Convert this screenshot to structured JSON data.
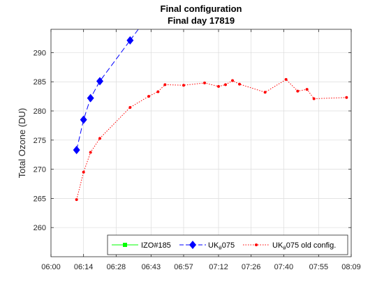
{
  "chart_data": {
    "type": "line",
    "title": "Final configuration",
    "subtitle": "Final day 17819",
    "xlabel": "",
    "ylabel": "Total Ozone (DU)",
    "xlim": [
      "06:00",
      "08:09"
    ],
    "ylim": [
      255,
      294
    ],
    "x_ticks": [
      "06:00",
      "06:14",
      "06:28",
      "06:43",
      "06:57",
      "07:12",
      "07:26",
      "07:40",
      "07:55",
      "08:09"
    ],
    "y_ticks": [
      260,
      265,
      270,
      275,
      280,
      285,
      290
    ],
    "grid": true,
    "legend_position": "bottom-right",
    "series": [
      {
        "name": "IZO#185",
        "color": "#00ff00",
        "line": "solid",
        "marker": "square",
        "x": [],
        "y": []
      },
      {
        "name": "UK#075",
        "legend_main": "UK",
        "legend_sub": "#",
        "legend_tail": "075",
        "color": "#0000ff",
        "line": "dashed",
        "marker": "diamond",
        "x": [
          "06:11",
          "06:14",
          "06:17",
          "06:21",
          "06:34"
        ],
        "y": [
          273.3,
          278.5,
          282.2,
          285.1,
          292.1
        ]
      },
      {
        "name": "UK#075 old config.",
        "legend_main": "UK",
        "legend_sub": "#",
        "legend_tail": "075 old config.",
        "color": "#ff0000",
        "line": "dotted",
        "marker": "dot",
        "x": [
          "06:11",
          "06:14",
          "06:17",
          "06:21",
          "06:34",
          "06:42",
          "06:46",
          "06:49",
          "06:57",
          "07:06",
          "07:12",
          "07:15",
          "07:18",
          "07:21",
          "07:32",
          "07:41",
          "07:46",
          "07:50",
          "07:53",
          "08:07"
        ],
        "y": [
          264.8,
          269.5,
          272.9,
          275.3,
          280.6,
          282.5,
          283.3,
          284.5,
          284.4,
          284.8,
          284.2,
          284.5,
          285.2,
          284.6,
          283.2,
          285.4,
          283.4,
          283.7,
          282.1,
          282.3
        ]
      }
    ]
  }
}
